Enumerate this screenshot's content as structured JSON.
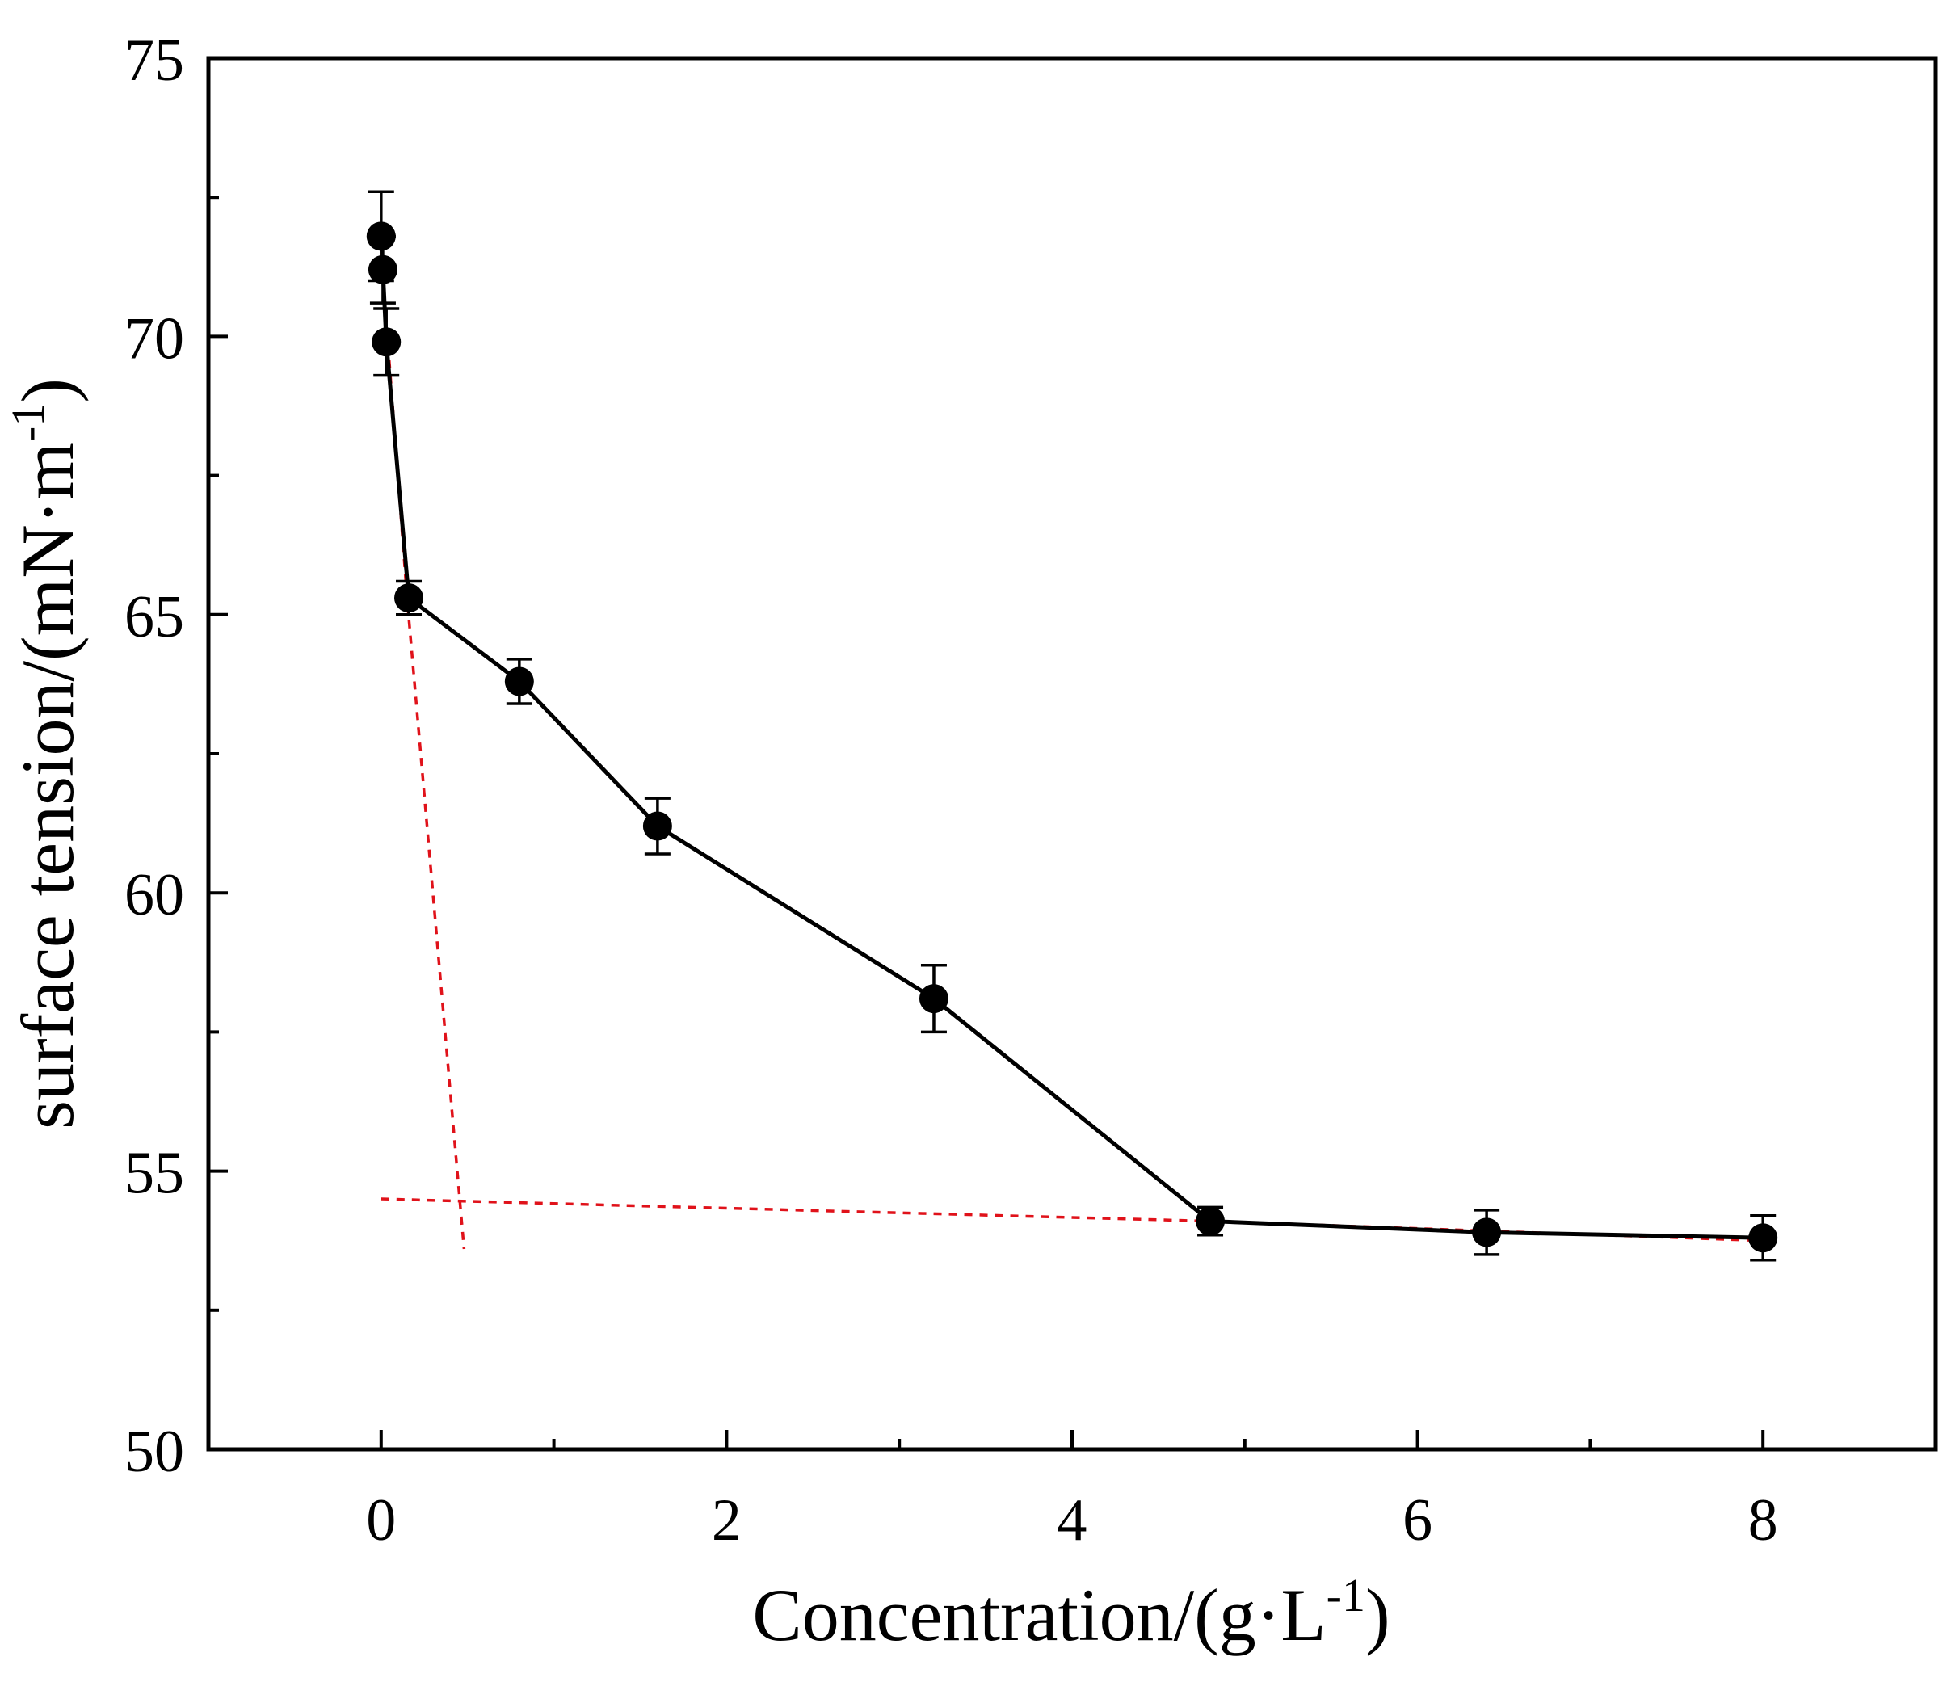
{
  "chart_data": {
    "type": "scatter",
    "xlabel": "Concentration/(g·L",
    "xlabel_sup": "-1",
    "xlabel_end": ")",
    "ylabel": "surface tension/(mN·m",
    "ylabel_sup": "-1",
    "ylabel_end": ")",
    "xlim": [
      -1,
      9
    ],
    "ylim": [
      50,
      75
    ],
    "xticks": [
      0,
      2,
      4,
      6,
      8
    ],
    "xticks_minor": [
      1,
      3,
      5,
      7
    ],
    "yticks": [
      50,
      55,
      60,
      65,
      70,
      75
    ],
    "yticks_minor": [
      52.5,
      57.5,
      62.5,
      67.5,
      72.5
    ],
    "grid": false,
    "series": [
      {
        "style": "line-with-markers",
        "color": "#000000",
        "x": [
          0.0,
          0.01,
          0.03,
          0.16,
          0.8,
          1.6,
          3.2,
          4.8,
          6.4,
          8.0
        ],
        "y": [
          71.8,
          71.2,
          69.9,
          65.3,
          63.8,
          61.2,
          58.1,
          54.1,
          53.9,
          53.8
        ],
        "error": [
          0.8,
          0.6,
          0.6,
          0.3,
          0.4,
          0.5,
          0.6,
          0.25,
          0.4,
          0.4
        ]
      }
    ],
    "guide_lines": [
      {
        "color": "#e0121a",
        "style": "dashed",
        "x": [
          0.0,
          0.15,
          0.48
        ],
        "y": [
          71.5,
          65.3,
          53.6
        ]
      },
      {
        "color": "#e0121a",
        "style": "dashed",
        "x": [
          0.0,
          4.8,
          8.0
        ],
        "y": [
          54.5,
          54.1,
          53.75
        ]
      }
    ]
  }
}
